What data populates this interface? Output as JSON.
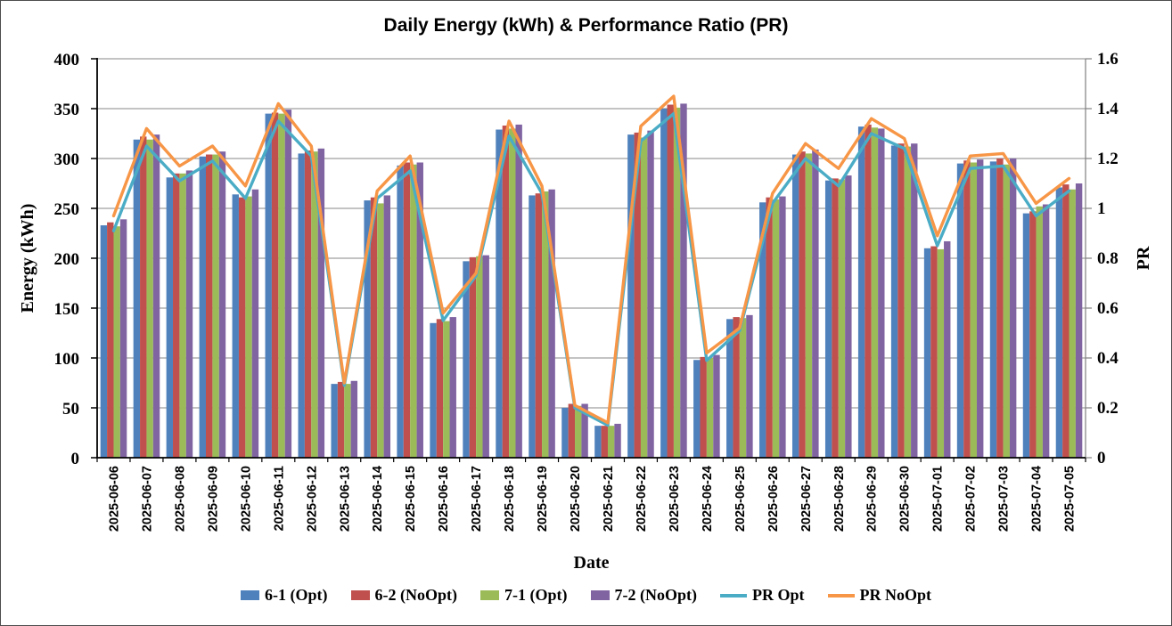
{
  "title": "Daily Energy (kWh) & Performance Ratio (PR)",
  "axes": {
    "x_title": "Date",
    "y_left_title": "Energy (kWh)",
    "y_right_title": "PR",
    "y_left_tick_labels": [
      "0",
      "50",
      "100",
      "150",
      "200",
      "250",
      "300",
      "350",
      "400"
    ],
    "y_right_tick_labels": [
      "0",
      "0.2",
      "0.4",
      "0.6",
      "0.8",
      "1",
      "1.2",
      "1.4",
      "1.6"
    ],
    "y_left_range": {
      "min": 0,
      "max": 400,
      "step": 50
    },
    "y_right_range": {
      "min": 0,
      "max": 1.6,
      "step": 0.2
    },
    "grid": "horizontal-on"
  },
  "colors": {
    "bar_blue": "#4F81BD",
    "bar_red": "#C0504D",
    "bar_green": "#9BBB59",
    "bar_purple": "#8064A2",
    "line_teal": "#4BACC6",
    "line_orange": "#F79646",
    "gridline": "#878787",
    "axis_line": "#000000",
    "right_axis_line": "#808080"
  },
  "legend_position": "bottom",
  "chart_data": {
    "type": "bar",
    "subtype": "combo-bar-line-dual-axis",
    "title": "Daily Energy (kWh) & Performance Ratio (PR)",
    "xlabel": "Date",
    "ylabel_left": "Energy (kWh)",
    "ylabel_right": "PR",
    "ylim_left": [
      0,
      400
    ],
    "ylim_right": [
      0,
      1.6
    ],
    "categories": [
      "2025-06-06",
      "2025-06-07",
      "2025-06-08",
      "2025-06-09",
      "2025-06-10",
      "2025-06-11",
      "2025-06-12",
      "2025-06-13",
      "2025-06-14",
      "2025-06-15",
      "2025-06-16",
      "2025-06-17",
      "2025-06-18",
      "2025-06-19",
      "2025-06-20",
      "2025-06-21",
      "2025-06-22",
      "2025-06-23",
      "2025-06-24",
      "2025-06-25",
      "2025-06-26",
      "2025-06-27",
      "2025-06-28",
      "2025-06-29",
      "2025-06-30",
      "2025-07-01",
      "2025-07-02",
      "2025-07-03",
      "2025-07-04",
      "2025-07-05"
    ],
    "series": [
      {
        "name": "6-1 (Opt)",
        "type": "bar",
        "axis": "left",
        "color": "#4F81BD",
        "values": [
          233,
          319,
          281,
          302,
          264,
          345,
          305,
          74,
          258,
          293,
          135,
          197,
          329,
          263,
          50,
          32,
          324,
          350,
          98,
          139,
          256,
          304,
          278,
          332,
          313,
          210,
          295,
          297,
          245,
          271
        ]
      },
      {
        "name": "6-2 (NoOpt)",
        "type": "bar",
        "axis": "left",
        "color": "#C0504D",
        "values": [
          236,
          322,
          285,
          304,
          261,
          346,
          308,
          76,
          261,
          296,
          139,
          201,
          333,
          265,
          54,
          32,
          326,
          354,
          101,
          141,
          261,
          307,
          280,
          334,
          315,
          212,
          298,
          300,
          247,
          274
        ]
      },
      {
        "name": "7-1 (Opt)",
        "type": "bar",
        "axis": "left",
        "color": "#9BBB59",
        "values": [
          232,
          319,
          285,
          304,
          262,
          345,
          307,
          74,
          255,
          294,
          137,
          202,
          330,
          267,
          52,
          32,
          321,
          351,
          100,
          140,
          259,
          305,
          279,
          331,
          312,
          209,
          296,
          294,
          252,
          269
        ]
      },
      {
        "name": "7-2 (NoOpt)",
        "type": "bar",
        "axis": "left",
        "color": "#8064A2",
        "values": [
          239,
          324,
          288,
          307,
          269,
          349,
          310,
          77,
          263,
          296,
          141,
          203,
          334,
          269,
          54,
          34,
          328,
          355,
          103,
          143,
          262,
          309,
          283,
          330,
          315,
          217,
          299,
          300,
          254,
          275
        ]
      },
      {
        "name": "PR Opt",
        "type": "line",
        "axis": "right",
        "color": "#4BACC6",
        "values": [
          0.91,
          1.25,
          1.11,
          1.19,
          1.04,
          1.35,
          1.21,
          0.29,
          1.04,
          1.15,
          0.55,
          0.73,
          1.29,
          1.06,
          0.2,
          0.13,
          1.27,
          1.38,
          0.39,
          0.51,
          1.02,
          1.2,
          1.09,
          1.3,
          1.24,
          0.85,
          1.16,
          1.17,
          0.97,
          1.07
        ]
      },
      {
        "name": "PR NoOpt",
        "type": "line",
        "axis": "right",
        "color": "#F79646",
        "values": [
          0.97,
          1.32,
          1.17,
          1.25,
          1.09,
          1.42,
          1.25,
          0.3,
          1.07,
          1.21,
          0.58,
          0.74,
          1.35,
          1.09,
          0.21,
          0.14,
          1.33,
          1.45,
          0.42,
          0.52,
          1.06,
          1.26,
          1.16,
          1.36,
          1.28,
          0.89,
          1.21,
          1.22,
          1.02,
          1.12
        ]
      }
    ]
  }
}
